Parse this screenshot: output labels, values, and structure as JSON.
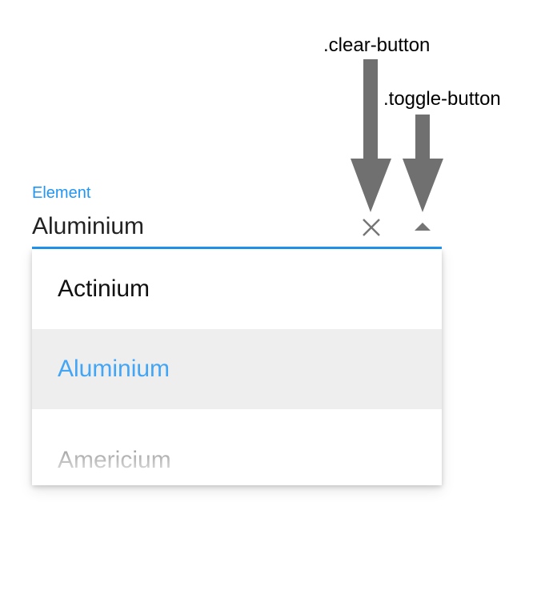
{
  "annotations": {
    "clear_button": ".clear-button",
    "toggle_button": ".toggle-button",
    "arrow_color": "#707070"
  },
  "combo_box": {
    "label": "Element",
    "value": "Aluminium",
    "accent_color": "#2196f3",
    "clear_icon": "close-icon",
    "toggle_icon": "caret-up-icon"
  },
  "dropdown": {
    "items": [
      {
        "label": "Actinium"
      },
      {
        "label": "Aluminium"
      },
      {
        "label": "Americium"
      }
    ],
    "selected_label": "Aluminium",
    "selected_color": "#42a5f5"
  }
}
